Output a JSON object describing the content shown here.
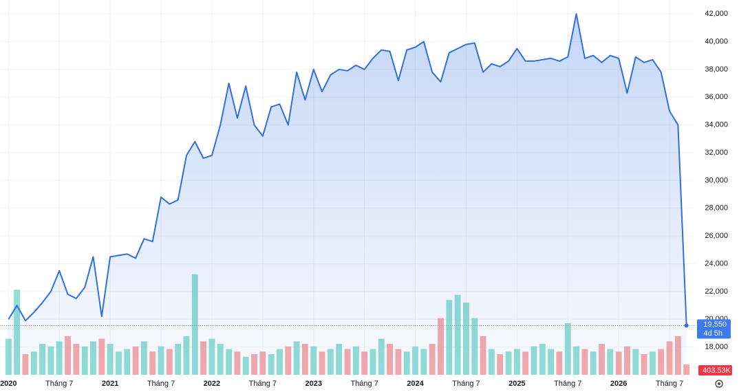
{
  "chart_data": {
    "type": "area",
    "x": [
      "2020-01",
      "2020-02",
      "2020-03",
      "2020-04",
      "2020-05",
      "2020-06",
      "2020-07",
      "2020-08",
      "2020-09",
      "2020-10",
      "2020-11",
      "2020-12",
      "2021-01",
      "2021-02",
      "2021-03",
      "2021-04",
      "2021-05",
      "2021-06",
      "2021-07",
      "2021-08",
      "2021-09",
      "2021-10",
      "2021-11",
      "2021-12",
      "2022-01",
      "2022-02",
      "2022-03",
      "2022-04",
      "2022-05",
      "2022-06",
      "2022-07",
      "2022-08",
      "2022-09",
      "2022-10",
      "2022-11",
      "2022-12",
      "2023-01",
      "2023-02",
      "2023-03",
      "2023-04",
      "2023-05",
      "2023-06",
      "2023-07",
      "2023-08",
      "2023-09",
      "2023-10",
      "2023-11",
      "2023-12",
      "2024-01",
      "2024-02",
      "2024-03",
      "2024-04",
      "2024-05",
      "2024-06",
      "2024-07",
      "2024-08",
      "2024-09",
      "2024-10",
      "2024-11",
      "2024-12",
      "2025-01",
      "2025-02",
      "2025-03",
      "2025-04",
      "2025-05",
      "2025-06",
      "2025-07",
      "2025-08",
      "2025-09",
      "2025-10",
      "2025-11",
      "2025-12",
      "2026-01",
      "2026-02",
      "2026-03",
      "2026-04",
      "2026-05",
      "2026-06",
      "2026-07",
      "2026-08",
      "2026-09"
    ],
    "series": [
      {
        "color": "#2f6fdf",
        "values": [
          20000,
          21000,
          19900,
          20500,
          21200,
          22000,
          23500,
          21800,
          21500,
          22300,
          24500,
          20200,
          24500,
          24600,
          24700,
          24400,
          25800,
          25600,
          28800,
          28300,
          28600,
          31800,
          32800,
          31600,
          31800,
          34000,
          37000,
          34500,
          36800,
          34000,
          33200,
          35300,
          35500,
          34000,
          37800,
          35800,
          38000,
          36400,
          37600,
          38000,
          37900,
          38300,
          38000,
          38800,
          39400,
          39300,
          37200,
          39400,
          39600,
          40000,
          37800,
          37100,
          39200,
          39500,
          39800,
          39900,
          37800,
          38400,
          38200,
          38600,
          39500,
          38600,
          38600,
          38700,
          38800,
          38600,
          38900,
          42000,
          38800,
          39000,
          38500,
          39000,
          38800,
          36300,
          38900,
          38500,
          38700,
          37800,
          35000,
          34000,
          19550
        ],
        "value_labels": [
          null,
          null,
          null,
          null,
          null,
          null,
          null,
          null,
          null,
          null,
          null,
          null,
          null,
          null,
          null,
          null,
          null,
          null,
          null,
          null,
          null,
          null,
          null,
          null,
          null,
          null,
          null,
          null,
          null,
          null,
          null,
          null,
          null,
          null,
          null,
          null,
          null,
          null,
          null,
          null,
          null,
          null,
          null,
          null,
          null,
          null,
          null,
          null,
          null,
          null,
          null,
          null,
          null,
          null,
          null,
          null,
          null,
          null,
          null,
          null,
          null,
          null,
          null,
          null,
          null,
          null,
          null,
          null,
          null,
          null,
          null,
          null,
          null,
          null,
          null,
          null,
          null,
          null,
          null,
          null,
          "19,550"
        ]
      }
    ],
    "countdown": "4d 5h",
    "volume": {
      "up_color": "#7fd8cd",
      "down_color": "#f49a9a",
      "ylim": [
        0,
        4000000
      ],
      "values": [
        1400000,
        3300000,
        800000,
        900000,
        1200000,
        1100000,
        1300000,
        1500000,
        1200000,
        1100000,
        1300000,
        1400000,
        1200000,
        900000,
        1000000,
        1100000,
        1300000,
        900000,
        1100000,
        1000000,
        1200000,
        1500000,
        3900000,
        1300000,
        1400000,
        1200000,
        1000000,
        900000,
        700000,
        800000,
        900000,
        800000,
        1000000,
        1100000,
        1300000,
        1200000,
        1100000,
        900000,
        1000000,
        1200000,
        1000000,
        1100000,
        900000,
        1000000,
        1400000,
        1200000,
        1000000,
        900000,
        1100000,
        1000000,
        1200000,
        2200000,
        2900000,
        3100000,
        2800000,
        2200000,
        1500000,
        1000000,
        800000,
        900000,
        1000000,
        900000,
        1100000,
        1200000,
        1000000,
        900000,
        2000000,
        1100000,
        1000000,
        900000,
        1200000,
        1000000,
        900000,
        1100000,
        1000000,
        800000,
        900000,
        1000000,
        1300000,
        1500000,
        403530
      ],
      "value_labels": [
        null,
        null,
        null,
        null,
        null,
        null,
        null,
        null,
        null,
        null,
        null,
        null,
        null,
        null,
        null,
        null,
        null,
        null,
        null,
        null,
        null,
        null,
        null,
        null,
        null,
        null,
        null,
        null,
        null,
        null,
        null,
        null,
        null,
        null,
        null,
        null,
        null,
        null,
        null,
        null,
        null,
        null,
        null,
        null,
        null,
        null,
        null,
        null,
        null,
        null,
        null,
        null,
        null,
        null,
        null,
        null,
        null,
        null,
        null,
        null,
        null,
        null,
        null,
        null,
        null,
        null,
        null,
        null,
        null,
        null,
        null,
        null,
        null,
        null,
        null,
        null,
        null,
        null,
        null,
        null,
        "403.53K"
      ]
    },
    "xlim": [
      "2019-12",
      "2026-10"
    ],
    "xticks": [
      {
        "value": "2020-01",
        "label": "2020"
      },
      {
        "value": "2020-07",
        "label": "Tháng 7"
      },
      {
        "value": "2021-01",
        "label": "2021"
      },
      {
        "value": "2021-07",
        "label": "Tháng 7"
      },
      {
        "value": "2022-01",
        "label": "2022"
      },
      {
        "value": "2022-07",
        "label": "Tháng 7"
      },
      {
        "value": "2023-01",
        "label": "2023"
      },
      {
        "value": "2023-07",
        "label": "Tháng 7"
      },
      {
        "value": "2024-01",
        "label": "2024"
      },
      {
        "value": "2024-07",
        "label": "Tháng 7"
      },
      {
        "value": "2025-01",
        "label": "2025"
      },
      {
        "value": "2025-07",
        "label": "Tháng 7"
      },
      {
        "value": "2026-01",
        "label": "2026"
      },
      {
        "value": "2026-07",
        "label": "Tháng 7"
      }
    ],
    "ylim": [
      16000,
      43000
    ],
    "yticks": [
      {
        "value": 18000,
        "label": "18,000"
      },
      {
        "value": 20000,
        "label": "20,000"
      },
      {
        "value": 22000,
        "label": "22,000"
      },
      {
        "value": 24000,
        "label": "24,000"
      },
      {
        "value": 26000,
        "label": "26,000"
      },
      {
        "value": 28000,
        "label": "28,000"
      },
      {
        "value": 30000,
        "label": "30,000"
      },
      {
        "value": 32000,
        "label": "32,000"
      },
      {
        "value": 34000,
        "label": "34,000"
      },
      {
        "value": 36000,
        "label": "36,000"
      },
      {
        "value": 38000,
        "label": "38,000"
      },
      {
        "value": 40000,
        "label": "40,000"
      },
      {
        "value": 42000,
        "label": "42,000"
      }
    ],
    "grid": true
  }
}
